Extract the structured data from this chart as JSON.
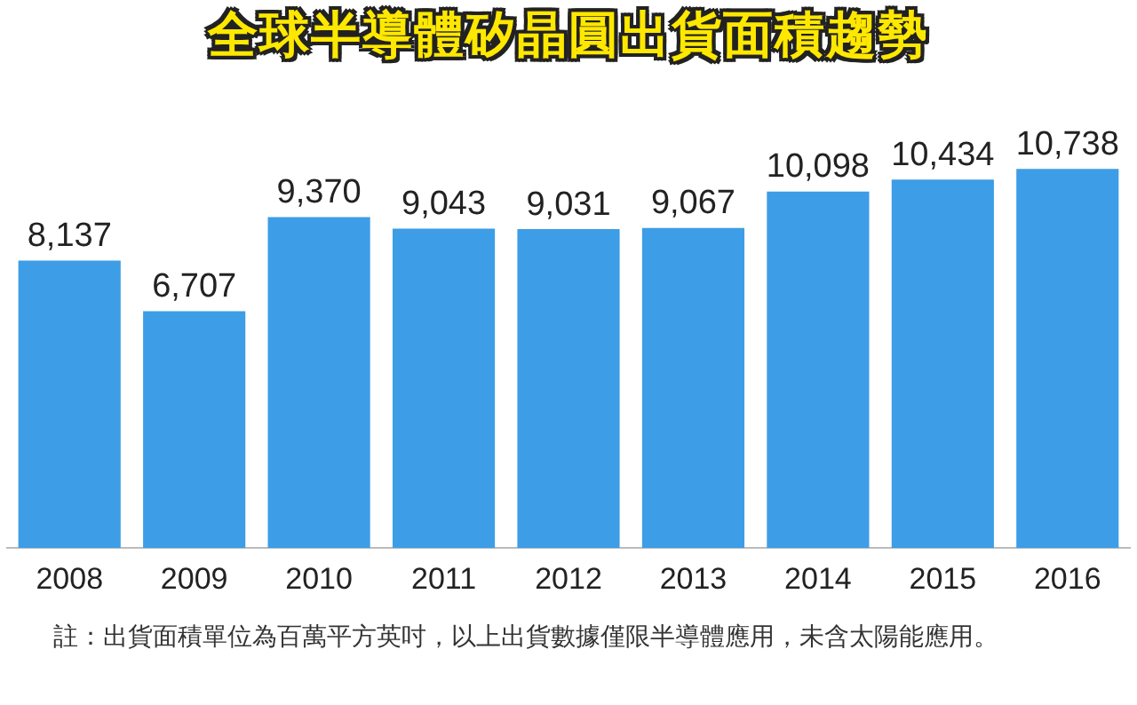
{
  "chart_data": {
    "type": "bar",
    "title": "全球半導體矽晶圓出貨面積趨勢",
    "categories": [
      "2008",
      "2009",
      "2010",
      "2011",
      "2012",
      "2013",
      "2014",
      "2015",
      "2016"
    ],
    "values": [
      8137,
      6707,
      9370,
      9043,
      9031,
      9067,
      10098,
      10434,
      10738
    ],
    "value_labels": [
      "8,137",
      "6,707",
      "9,370",
      "9,043",
      "9,031",
      "9,067",
      "10,098",
      "10,434",
      "10,738"
    ],
    "color": "#3d9de6",
    "grid": false,
    "legend": false,
    "annotations": [
      "註：出貨面積單位為百萬平方英吋，以上出貨數據僅限半導體應用，未含太陽能應用。"
    ]
  }
}
